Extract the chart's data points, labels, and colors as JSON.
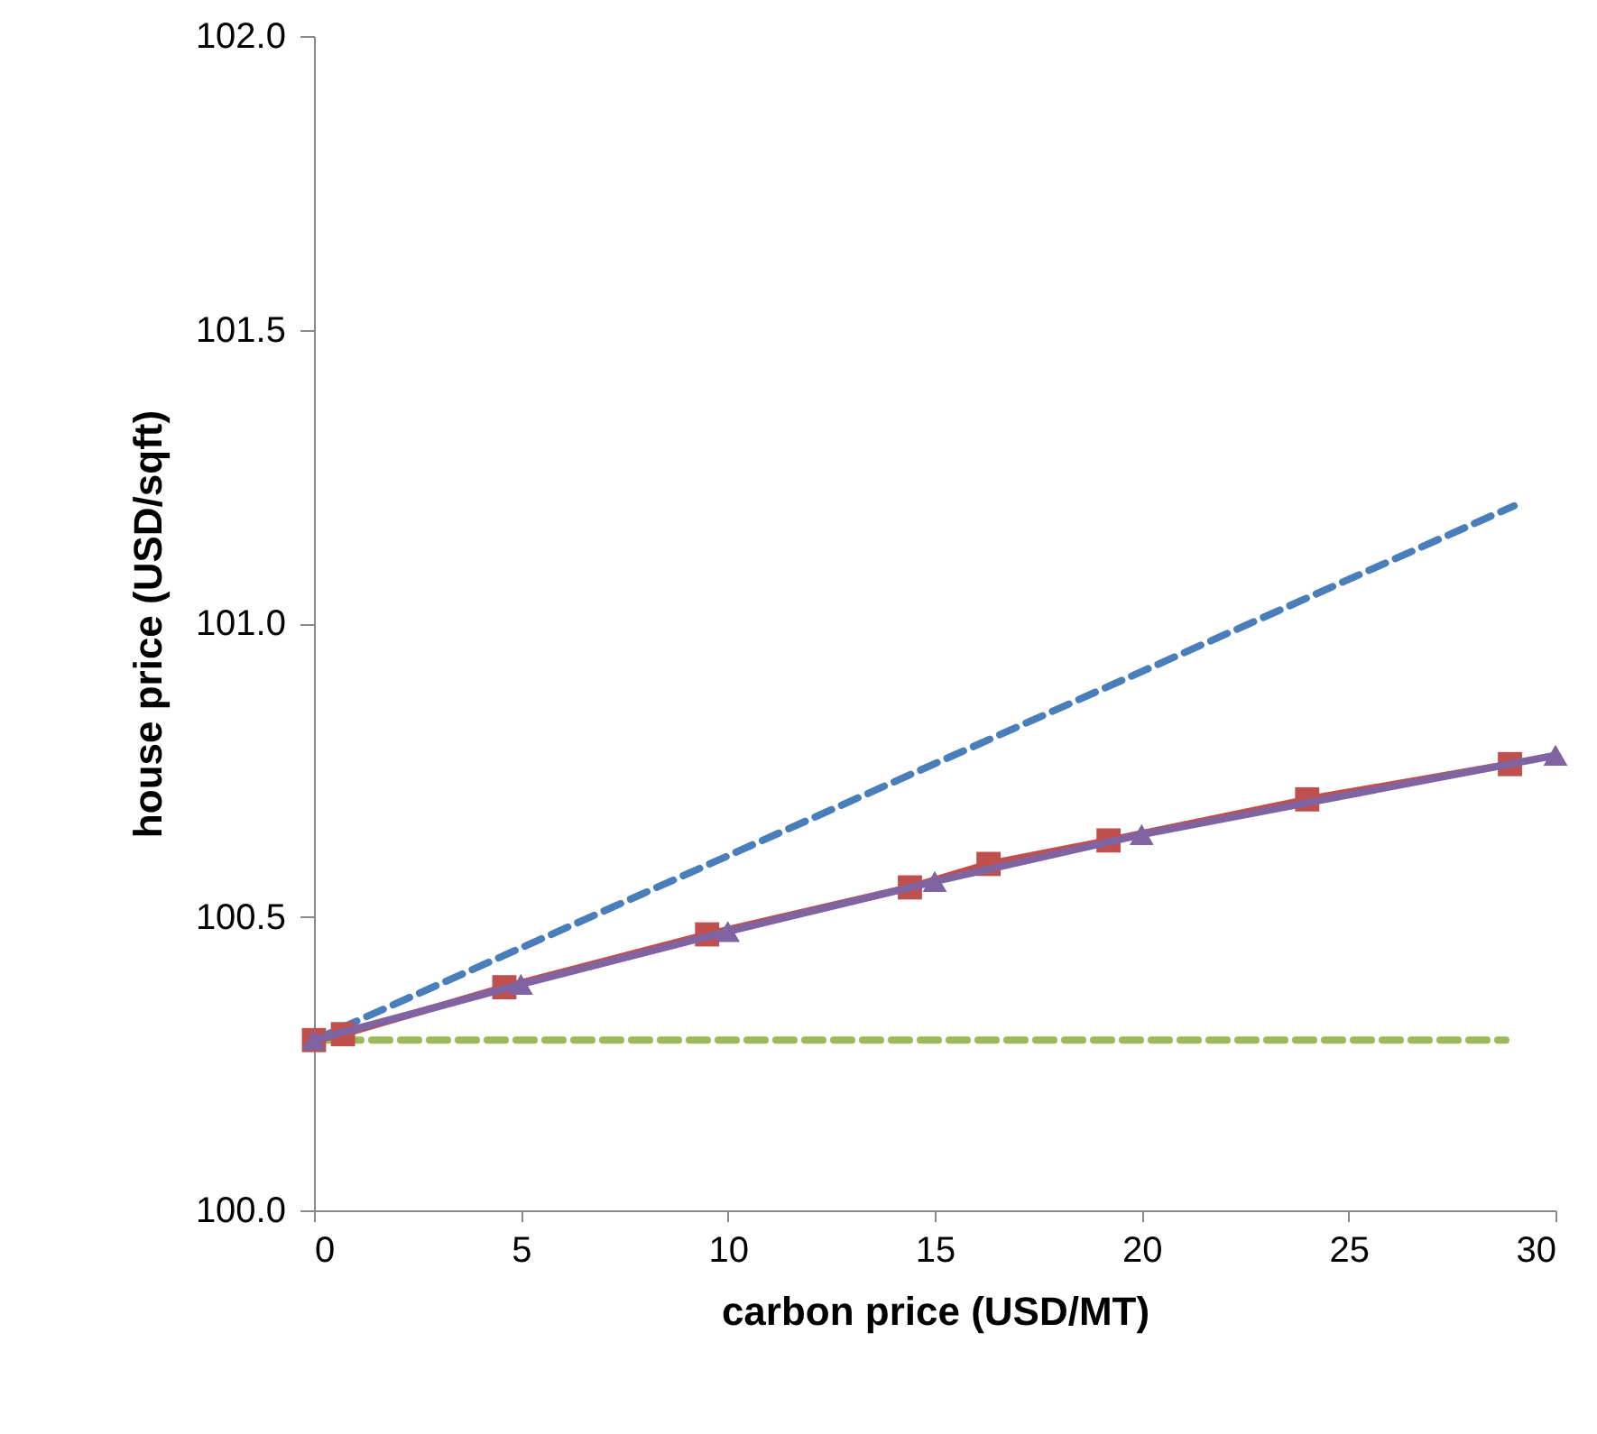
{
  "chart_data": {
    "type": "line",
    "xlabel": "carbon price (USD/MT)",
    "ylabel": "house price (USD/sqft)",
    "xlim": [
      0,
      30
    ],
    "xticks": [
      0,
      5,
      10,
      15,
      20,
      25,
      30
    ],
    "ylim": [
      100,
      102
    ],
    "yticks": [
      {
        "value": 100,
        "label": "100.0"
      },
      {
        "value": 100.5,
        "label": "100.5"
      },
      {
        "value": 101,
        "label": "101.0"
      },
      {
        "value": 101.5,
        "label": "101.5"
      },
      {
        "value": 102,
        "label": "102.0"
      }
    ],
    "grid": false,
    "series": [
      {
        "color": "#4a7ebb",
        "line_style": "dashed",
        "marker": "none",
        "x": [
          0,
          29
        ],
        "values": [
          100.29,
          101.2
        ]
      },
      {
        "color": "#9bbb59",
        "line_style": "dashed",
        "marker": "none",
        "x": [
          0,
          28.8
        ],
        "values": [
          100.29,
          100.29
        ]
      },
      {
        "color": "#c0504d",
        "line_style": "solid",
        "marker": "square",
        "x": [
          0,
          0.7,
          4.6,
          9.5,
          14.4,
          16.3,
          19.2,
          24.0,
          28.9
        ],
        "values": [
          100.29,
          100.3,
          100.38,
          100.47,
          100.55,
          100.59,
          100.63,
          100.7,
          100.76
        ]
      },
      {
        "color": "#8064a2",
        "line_style": "solid",
        "marker": "triangle",
        "x": [
          0,
          5,
          10,
          15,
          20,
          30
        ],
        "values": [
          100.29,
          100.385,
          100.475,
          100.56,
          100.64,
          100.775
        ]
      }
    ]
  }
}
